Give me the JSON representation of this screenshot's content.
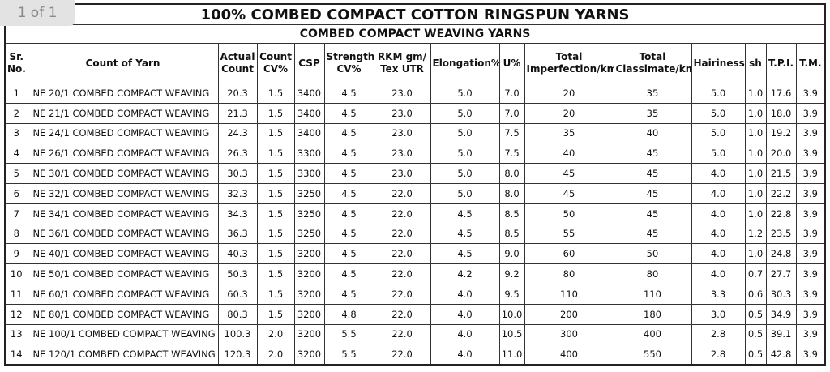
{
  "page_badge": "1 of 1",
  "table": {
    "title": "100% COMBED COMPACT COTTON RINGSPUN YARNS",
    "subtitle": "COMBED COMPACT WEAVING YARNS",
    "headers": [
      "Sr. No.",
      "Count of Yarn",
      "Actual Count",
      "Count CV%",
      "CSP",
      "Strength CV%",
      "RKM gm/ Tex UTR",
      "Elongation%",
      "U%",
      "Total Imperfection/km",
      "Total Classimate/km",
      "Hairiness",
      "sh",
      "T.P.I.",
      "T.M."
    ],
    "rows": [
      [
        "1",
        "NE 20/1 COMBED COMPACT WEAVING",
        "20.3",
        "1.5",
        "3400",
        "4.5",
        "23.0",
        "5.0",
        "7.0",
        "20",
        "35",
        "5.0",
        "1.0",
        "17.6",
        "3.9"
      ],
      [
        "2",
        "NE 21/1 COMBED COMPACT WEAVING",
        "21.3",
        "1.5",
        "3400",
        "4.5",
        "23.0",
        "5.0",
        "7.0",
        "20",
        "35",
        "5.0",
        "1.0",
        "18.0",
        "3.9"
      ],
      [
        "3",
        "NE 24/1 COMBED COMPACT WEAVING",
        "24.3",
        "1.5",
        "3400",
        "4.5",
        "23.0",
        "5.0",
        "7.5",
        "35",
        "40",
        "5.0",
        "1.0",
        "19.2",
        "3.9"
      ],
      [
        "4",
        "NE 26/1 COMBED COMPACT WEAVING",
        "26.3",
        "1.5",
        "3300",
        "4.5",
        "23.0",
        "5.0",
        "7.5",
        "40",
        "45",
        "5.0",
        "1.0",
        "20.0",
        "3.9"
      ],
      [
        "5",
        "NE 30/1 COMBED COMPACT WEAVING",
        "30.3",
        "1.5",
        "3300",
        "4.5",
        "23.0",
        "5.0",
        "8.0",
        "45",
        "45",
        "4.0",
        "1.0",
        "21.5",
        "3.9"
      ],
      [
        "6",
        "NE 32/1 COMBED COMPACT WEAVING",
        "32.3",
        "1.5",
        "3250",
        "4.5",
        "22.0",
        "5.0",
        "8.0",
        "45",
        "45",
        "4.0",
        "1.0",
        "22.2",
        "3.9"
      ],
      [
        "7",
        "NE 34/1 COMBED COMPACT WEAVING",
        "34.3",
        "1.5",
        "3250",
        "4.5",
        "22.0",
        "4.5",
        "8.5",
        "50",
        "45",
        "4.0",
        "1.0",
        "22.8",
        "3.9"
      ],
      [
        "8",
        "NE 36/1 COMBED COMPACT WEAVING",
        "36.3",
        "1.5",
        "3250",
        "4.5",
        "22.0",
        "4.5",
        "8.5",
        "55",
        "45",
        "4.0",
        "1.2",
        "23.5",
        "3.9"
      ],
      [
        "9",
        "NE 40/1 COMBED COMPACT WEAVING",
        "40.3",
        "1.5",
        "3200",
        "4.5",
        "22.0",
        "4.5",
        "9.0",
        "60",
        "50",
        "4.0",
        "1.0",
        "24.8",
        "3.9"
      ],
      [
        "10",
        "NE 50/1 COMBED COMPACT WEAVING",
        "50.3",
        "1.5",
        "3200",
        "4.5",
        "22.0",
        "4.2",
        "9.2",
        "80",
        "80",
        "4.0",
        "0.7",
        "27.7",
        "3.9"
      ],
      [
        "11",
        "NE 60/1 COMBED COMPACT WEAVING",
        "60.3",
        "1.5",
        "3200",
        "4.5",
        "22.0",
        "4.0",
        "9.5",
        "110",
        "110",
        "3.3",
        "0.6",
        "30.3",
        "3.9"
      ],
      [
        "12",
        "NE 80/1 COMBED COMPACT WEAVING",
        "80.3",
        "1.5",
        "3200",
        "4.8",
        "22.0",
        "4.0",
        "10.0",
        "200",
        "180",
        "3.0",
        "0.5",
        "34.9",
        "3.9"
      ],
      [
        "13",
        "NE 100/1 COMBED COMPACT WEAVING",
        "100.3",
        "2.0",
        "3200",
        "5.5",
        "22.0",
        "4.0",
        "10.5",
        "300",
        "400",
        "2.8",
        "0.5",
        "39.1",
        "3.9"
      ],
      [
        "14",
        "NE 120/1 COMBED COMPACT WEAVING",
        "120.3",
        "2.0",
        "3200",
        "5.5",
        "22.0",
        "4.0",
        "11.0",
        "400",
        "550",
        "2.8",
        "0.5",
        "42.8",
        "3.9"
      ]
    ]
  }
}
